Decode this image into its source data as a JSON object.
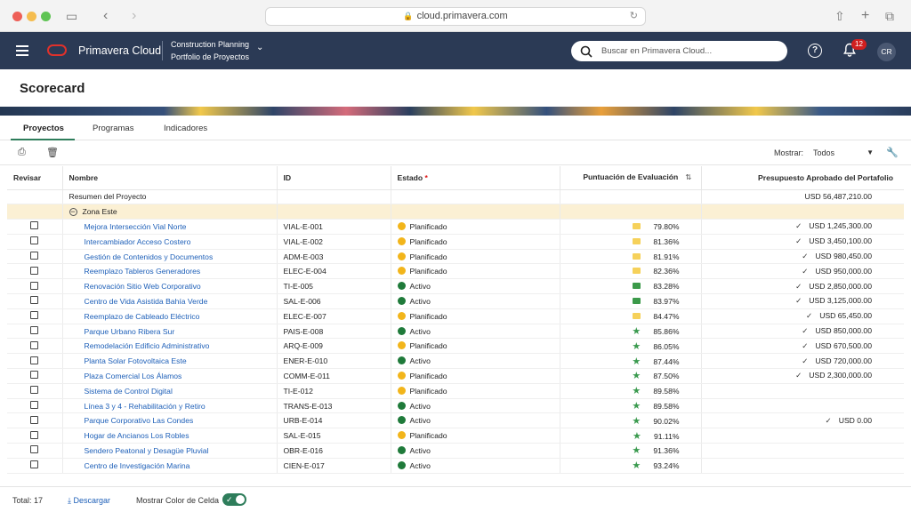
{
  "browser": {
    "url": "cloud.primavera.com"
  },
  "appbar": {
    "app_name": "Primavera Cloud",
    "context_title": "Construction Planning",
    "context_subtitle": "Portfolio de Proyectos",
    "search_placeholder": "Buscar en Primavera Cloud...",
    "notification_count": "12",
    "user_initials": "CR"
  },
  "page": {
    "title": "Scorecard"
  },
  "tabs": [
    {
      "label": "Proyectos",
      "active": true
    },
    {
      "label": "Programas",
      "active": false
    },
    {
      "label": "Indicadores",
      "active": false
    }
  ],
  "toolbar": {
    "show_label": "Mostrar:",
    "show_value": "Todos"
  },
  "table": {
    "headers": {
      "review": "Revisar",
      "name": "Nombre",
      "id": "ID",
      "status": "Estado",
      "status_required": "*",
      "score": "Puntuación de Evaluación",
      "budget": "Presupuesto Aprobado del Portafolio"
    },
    "summary": {
      "name": "Resumen del Proyecto",
      "budget": "USD 56,487,210.00"
    },
    "group": {
      "name": "Zona Este"
    },
    "rows": [
      {
        "name": "Mejora Intersección Vial Norte",
        "id": "VIAL-E-001",
        "status": "Planificado",
        "score": "79.80%",
        "budget": "USD 1,245,300.00"
      },
      {
        "name": "Intercambiador Acceso Costero",
        "id": "VIAL-E-002",
        "status": "Planificado",
        "score": "81.36%",
        "budget": "USD 3,450,100.00"
      },
      {
        "name": "Gestión de Contenidos y Documentos",
        "id": "ADM-E-003",
        "status": "Planificado",
        "score": "81.91%",
        "budget": "USD 980,450.00"
      },
      {
        "name": "Reemplazo Tableros Generadores",
        "id": "ELEC-E-004",
        "status": "Planificado",
        "score": "82.36%",
        "budget": "USD 950,000.00"
      },
      {
        "name": "Renovación Sitio Web Corporativo",
        "id": "TI-E-005",
        "status": "Activo",
        "score": "83.28%",
        "budget": "USD 2,850,000.00"
      },
      {
        "name": "Centro de Vida Asistida Bahía Verde",
        "id": "SAL-E-006",
        "status": "Activo",
        "score": "83.97%",
        "budget": "USD 3,125,000.00"
      },
      {
        "name": "Reemplazo de Cableado Eléctrico",
        "id": "ELEC-E-007",
        "status": "Planificado",
        "score": "84.47%",
        "budget": "USD 65,450.00"
      },
      {
        "name": "Parque Urbano Ribera Sur",
        "id": "PAIS-E-008",
        "status": "Activo",
        "score": "85.86%",
        "budget": "USD 850,000.00"
      },
      {
        "name": "Remodelación Edificio Administrativo",
        "id": "ARQ-E-009",
        "status": "Planificado",
        "score": "86.05%",
        "budget": "USD 670,500.00"
      },
      {
        "name": "Planta Solar Fotovoltaica Este",
        "id": "ENER-E-010",
        "status": "Activo",
        "score": "87.44%",
        "budget": "USD 720,000.00"
      },
      {
        "name": "Plaza Comercial Los Álamos",
        "id": "COMM-E-011",
        "status": "Planificado",
        "score": "87.50%",
        "budget": "USD 2,300,000.00"
      },
      {
        "name": "Sistema de Control Digital",
        "id": "TI-E-012",
        "status": "Planificado",
        "score": "89.58%",
        "budget": ""
      },
      {
        "name": "Línea 3 y 4 - Rehabilitación y Retiro",
        "id": "TRANS-E-013",
        "status": "Activo",
        "score": "89.58%",
        "budget": ""
      },
      {
        "name": "Parque Corporativo Las Condes",
        "id": "URB-E-014",
        "status": "Activo",
        "score": "90.02%",
        "budget": "USD 0.00"
      },
      {
        "name": "Hogar de Ancianos Los Robles",
        "id": "SAL-E-015",
        "status": "Planificado",
        "score": "91.11%",
        "budget": ""
      },
      {
        "name": "Sendero Peatonal y Desagüe Pluvial",
        "id": "OBR-E-016",
        "status": "Activo",
        "score": "91.36%",
        "budget": ""
      },
      {
        "name": "Centro de Investigación Marina",
        "id": "CIEN-E-017",
        "status": "Activo",
        "score": "93.24%",
        "budget": ""
      }
    ]
  },
  "footer": {
    "total": "Total: 17",
    "download": "Descargar",
    "cell_color": "Mostrar Color de Celda"
  },
  "colors": {
    "accent": "#2e7d5b",
    "appbar": "#2b3a55",
    "planned": "#f2b51b",
    "active": "#1f7a3a",
    "group_row": "#fbf0d4"
  }
}
